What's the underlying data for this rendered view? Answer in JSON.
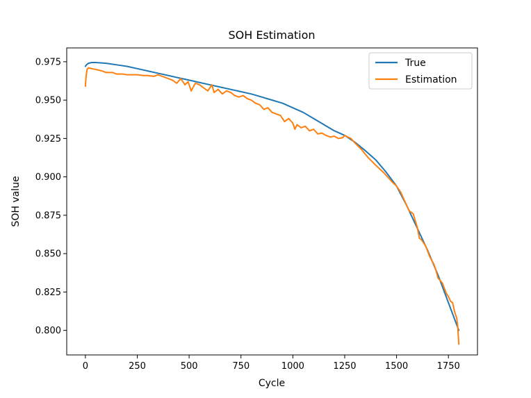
{
  "chart_data": {
    "type": "line",
    "title": "SOH Estimation",
    "xlabel": "Cycle",
    "ylabel": "SOH value",
    "xlim": [
      -90,
      1890
    ],
    "ylim": [
      0.784,
      0.984
    ],
    "xticks": [
      0,
      250,
      500,
      750,
      1000,
      1250,
      1500,
      1750
    ],
    "xtick_labels": [
      "0",
      "250",
      "500",
      "750",
      "1000",
      "1250",
      "1500",
      "1750"
    ],
    "yticks": [
      0.8,
      0.825,
      0.85,
      0.875,
      0.9,
      0.925,
      0.95,
      0.975
    ],
    "ytick_labels": [
      "0.800",
      "0.825",
      "0.850",
      "0.875",
      "0.900",
      "0.925",
      "0.950",
      "0.975"
    ],
    "grid": false,
    "legend_position": "top-right",
    "series": [
      {
        "name": "True",
        "color": "#1f77b4",
        "x": [
          0,
          5,
          15,
          30,
          50,
          100,
          150,
          200,
          250,
          300,
          350,
          400,
          450,
          500,
          550,
          600,
          650,
          700,
          750,
          800,
          850,
          900,
          950,
          1000,
          1050,
          1100,
          1150,
          1200,
          1250,
          1300,
          1350,
          1400,
          1450,
          1500,
          1550,
          1600,
          1650,
          1700,
          1750,
          1800
        ],
        "y": [
          0.972,
          0.973,
          0.974,
          0.9745,
          0.9745,
          0.974,
          0.973,
          0.972,
          0.9705,
          0.969,
          0.9675,
          0.966,
          0.9645,
          0.963,
          0.9615,
          0.96,
          0.9585,
          0.957,
          0.9555,
          0.954,
          0.952,
          0.95,
          0.948,
          0.945,
          0.942,
          0.938,
          0.934,
          0.93,
          0.927,
          0.9225,
          0.917,
          0.911,
          0.903,
          0.894,
          0.881,
          0.8665,
          0.852,
          0.836,
          0.818,
          0.8
        ]
      },
      {
        "name": "Estimation",
        "color": "#ff7f0e",
        "x": [
          0,
          3,
          8,
          15,
          30,
          50,
          80,
          100,
          130,
          150,
          180,
          200,
          230,
          250,
          280,
          300,
          330,
          350,
          380,
          400,
          420,
          440,
          460,
          480,
          495,
          510,
          530,
          550,
          570,
          590,
          610,
          620,
          640,
          660,
          680,
          700,
          720,
          740,
          760,
          780,
          800,
          820,
          840,
          860,
          880,
          900,
          920,
          940,
          960,
          980,
          1000,
          1010,
          1020,
          1040,
          1060,
          1080,
          1100,
          1120,
          1140,
          1160,
          1180,
          1200,
          1220,
          1240,
          1250,
          1280,
          1300,
          1330,
          1360,
          1400,
          1440,
          1480,
          1500,
          1520,
          1540,
          1560,
          1580,
          1600,
          1610,
          1620,
          1640,
          1660,
          1680,
          1690,
          1700,
          1720,
          1740,
          1750,
          1760,
          1770,
          1780,
          1790,
          1795,
          1800
        ],
        "y": [
          0.959,
          0.965,
          0.97,
          0.971,
          0.9705,
          0.97,
          0.969,
          0.968,
          0.968,
          0.967,
          0.967,
          0.9665,
          0.9665,
          0.9665,
          0.966,
          0.966,
          0.9655,
          0.9665,
          0.965,
          0.964,
          0.963,
          0.961,
          0.964,
          0.96,
          0.962,
          0.956,
          0.961,
          0.96,
          0.958,
          0.956,
          0.96,
          0.955,
          0.957,
          0.954,
          0.956,
          0.955,
          0.953,
          0.952,
          0.953,
          0.951,
          0.95,
          0.948,
          0.947,
          0.944,
          0.945,
          0.942,
          0.941,
          0.94,
          0.936,
          0.938,
          0.935,
          0.931,
          0.934,
          0.932,
          0.933,
          0.93,
          0.931,
          0.928,
          0.9285,
          0.927,
          0.926,
          0.9265,
          0.925,
          0.9255,
          0.927,
          0.925,
          0.922,
          0.918,
          0.913,
          0.9075,
          0.9025,
          0.8965,
          0.894,
          0.89,
          0.884,
          0.878,
          0.876,
          0.867,
          0.86,
          0.859,
          0.855,
          0.848,
          0.843,
          0.839,
          0.834,
          0.831,
          0.824,
          0.822,
          0.819,
          0.818,
          0.812,
          0.808,
          0.802,
          0.791
        ]
      }
    ]
  }
}
